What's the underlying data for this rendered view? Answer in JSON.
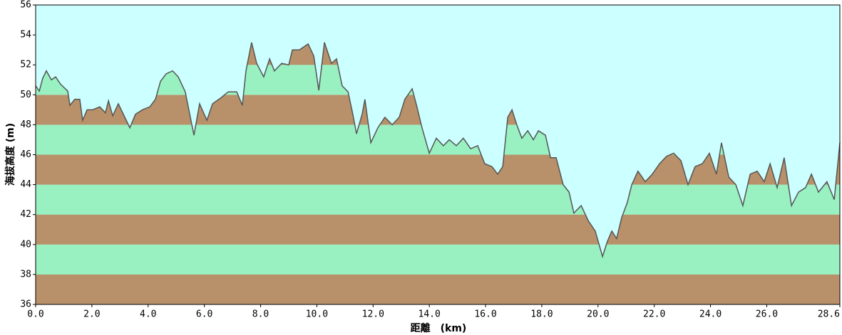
{
  "chart_data": {
    "type": "area",
    "xlabel": "距離　(km)",
    "ylabel": "海拔高度 (m)",
    "xlim": [
      0,
      28.6
    ],
    "ylim": [
      36,
      56
    ],
    "xticks": [
      {
        "value": 0,
        "label": "0.0"
      },
      {
        "value": 2,
        "label": "2.0"
      },
      {
        "value": 4,
        "label": "4.0"
      },
      {
        "value": 6,
        "label": "6.0"
      },
      {
        "value": 8,
        "label": "8.0"
      },
      {
        "value": 10,
        "label": "10.0"
      },
      {
        "value": 12,
        "label": "12.0"
      },
      {
        "value": 14,
        "label": "14.0"
      },
      {
        "value": 16,
        "label": "16.0"
      },
      {
        "value": 18,
        "label": "18.0"
      },
      {
        "value": 20,
        "label": "20.0"
      },
      {
        "value": 22,
        "label": "22.0"
      },
      {
        "value": 24,
        "label": "24.0"
      },
      {
        "value": 26,
        "label": "26.0"
      },
      28.6
    ],
    "yticks": [
      36,
      38,
      40,
      42,
      44,
      46,
      48,
      50,
      52,
      54,
      56
    ],
    "background": "#ccffff",
    "band_colors": [
      "#b8916a",
      "#99f0c0"
    ],
    "line_color": "#555555",
    "x": [
      0,
      0.13,
      0.25,
      0.38,
      0.56,
      0.71,
      0.89,
      1.14,
      1.22,
      1.39,
      1.57,
      1.67,
      1.83,
      2.03,
      2.28,
      2.48,
      2.59,
      2.74,
      2.94,
      3.17,
      3.35,
      3.55,
      3.8,
      4.06,
      4.26,
      4.44,
      4.64,
      4.87,
      5.07,
      5.32,
      5.48,
      5.63,
      5.83,
      6.09,
      6.29,
      6.59,
      6.85,
      7.15,
      7.35,
      7.48,
      7.68,
      7.86,
      8.11,
      8.32,
      8.49,
      8.75,
      9.0,
      9.13,
      9.38,
      9.69,
      9.89,
      10.07,
      10.27,
      10.52,
      10.7,
      10.9,
      11.11,
      11.28,
      11.41,
      11.61,
      11.71,
      11.92,
      12.17,
      12.42,
      12.68,
      12.93,
      13.13,
      13.39,
      13.56,
      13.74,
      14.0,
      14.25,
      14.5,
      14.71,
      14.96,
      15.21,
      15.47,
      15.72,
      15.97,
      16.23,
      16.43,
      16.61,
      16.79,
      16.94,
      17.11,
      17.29,
      17.5,
      17.7,
      17.88,
      18.13,
      18.31,
      18.51,
      18.76,
      18.97,
      19.14,
      19.4,
      19.65,
      19.9,
      20.16,
      20.33,
      20.49,
      20.66,
      20.84,
      21.04,
      21.2,
      21.42,
      21.68,
      21.93,
      22.19,
      22.44,
      22.69,
      22.95,
      23.2,
      23.45,
      23.71,
      23.96,
      24.21,
      24.39,
      24.65,
      24.9,
      25.15,
      25.41,
      25.66,
      25.91,
      26.12,
      26.37,
      26.62,
      26.88,
      27.13,
      27.38,
      27.59,
      27.84,
      28.14,
      28.4,
      28.6
    ],
    "values": [
      50.6,
      50.25,
      51.1,
      51.6,
      51.0,
      51.2,
      50.7,
      50.25,
      49.3,
      49.7,
      49.7,
      48.3,
      49.0,
      49.0,
      49.2,
      48.8,
      49.6,
      48.6,
      49.4,
      48.5,
      47.8,
      48.7,
      49.0,
      49.2,
      49.7,
      50.9,
      51.4,
      51.6,
      51.2,
      50.2,
      48.7,
      47.3,
      49.4,
      48.3,
      49.4,
      49.8,
      50.2,
      50.2,
      49.3,
      51.6,
      53.5,
      52.1,
      51.2,
      52.4,
      51.6,
      52.1,
      52.0,
      53.0,
      53.0,
      53.4,
      52.6,
      50.3,
      53.5,
      52.1,
      52.4,
      50.6,
      50.2,
      48.7,
      47.4,
      48.7,
      49.7,
      46.8,
      47.8,
      48.5,
      48.0,
      48.5,
      49.7,
      50.4,
      49.2,
      47.8,
      46.1,
      47.1,
      46.6,
      47.0,
      46.6,
      47.1,
      46.4,
      46.6,
      45.4,
      45.2,
      44.7,
      45.2,
      48.5,
      49.0,
      48.0,
      47.1,
      47.6,
      47.0,
      47.6,
      47.3,
      45.8,
      45.8,
      44.0,
      43.5,
      42.1,
      42.6,
      41.6,
      40.9,
      39.2,
      40.2,
      40.9,
      40.4,
      41.8,
      42.8,
      44.0,
      44.9,
      44.2,
      44.7,
      45.4,
      45.9,
      46.1,
      45.6,
      44.0,
      45.2,
      45.4,
      46.1,
      44.7,
      46.8,
      44.5,
      44.0,
      42.6,
      44.7,
      44.9,
      44.2,
      45.4,
      43.8,
      45.8,
      42.6,
      43.5,
      43.8,
      44.7,
      43.5,
      44.2,
      43.0,
      46.8
    ]
  }
}
